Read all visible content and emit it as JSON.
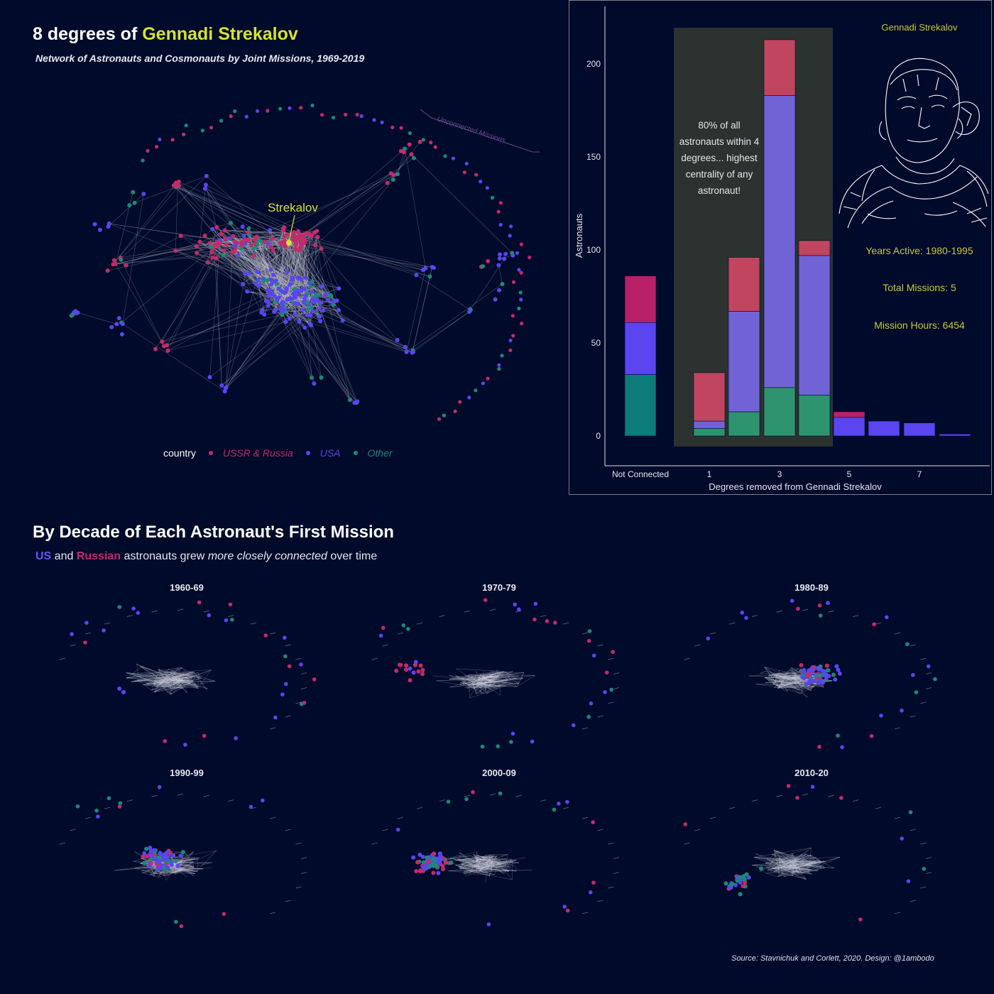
{
  "title": {
    "prefix": "8 degrees of ",
    "name": "Gennadi Strekalov"
  },
  "subtitle": "Network of Astronauts and Cosmonauts by Joint Missions, 1969-2019",
  "network": {
    "highlight_label": "Strekalov",
    "unconnected_label": "Unconnected Missions",
    "legend": {
      "title": "country",
      "items": [
        {
          "label": "USSR & Russia",
          "color": "#c42a6a"
        },
        {
          "label": "USA",
          "color": "#5a45f0"
        },
        {
          "label": "Other",
          "color": "#1a8a7a"
        }
      ]
    }
  },
  "profile": {
    "name": "Gennadi Strekalov",
    "years_active": "Years Active: 1980-1995",
    "total_missions": "Total Missions: 5",
    "mission_hours": "Mission Hours: 6454"
  },
  "annotation": [
    "80% of all",
    "astronauts within 4",
    "degrees... highest",
    "centrality of any",
    "astronaut!"
  ],
  "chart_data": {
    "type": "bar",
    "stacked": true,
    "xlabel": "Degrees removed from Gennadi Strekalov",
    "ylabel": "Astronauts",
    "ylim": [
      0,
      230
    ],
    "yticks": [
      0,
      50,
      100,
      150,
      200
    ],
    "categories": [
      "Not Connected",
      "1",
      "2",
      "3",
      "4",
      "5",
      "6",
      "7",
      "8"
    ],
    "x_tick_labels": [
      "Not Connected",
      "1",
      "3",
      "5",
      "7"
    ],
    "highlight_range": [
      "1",
      "4"
    ],
    "series": [
      {
        "name": "Other",
        "values": [
          33,
          4,
          13,
          26,
          22,
          0,
          0,
          0,
          0
        ]
      },
      {
        "name": "USA",
        "values": [
          28,
          4,
          54,
          157,
          75,
          10,
          8,
          7,
          1
        ]
      },
      {
        "name": "USSR & Russia",
        "values": [
          25,
          26,
          29,
          30,
          8,
          3,
          0,
          0,
          0
        ]
      }
    ]
  },
  "decade_section": {
    "title": "By Decade of Each Astronaut's First Mission",
    "subtitle": {
      "us": "US",
      "and": " and ",
      "ru": "Russian",
      "rest1": " astronauts grew ",
      "em": "more closely connected",
      "rest2": " over time"
    },
    "panels": [
      "1960-69",
      "1970-79",
      "1980-89",
      "1990-99",
      "2000-09",
      "2010-20"
    ]
  },
  "source": "Source: Stavnichuk and Corlett, 2020. Design: @1ambodo"
}
